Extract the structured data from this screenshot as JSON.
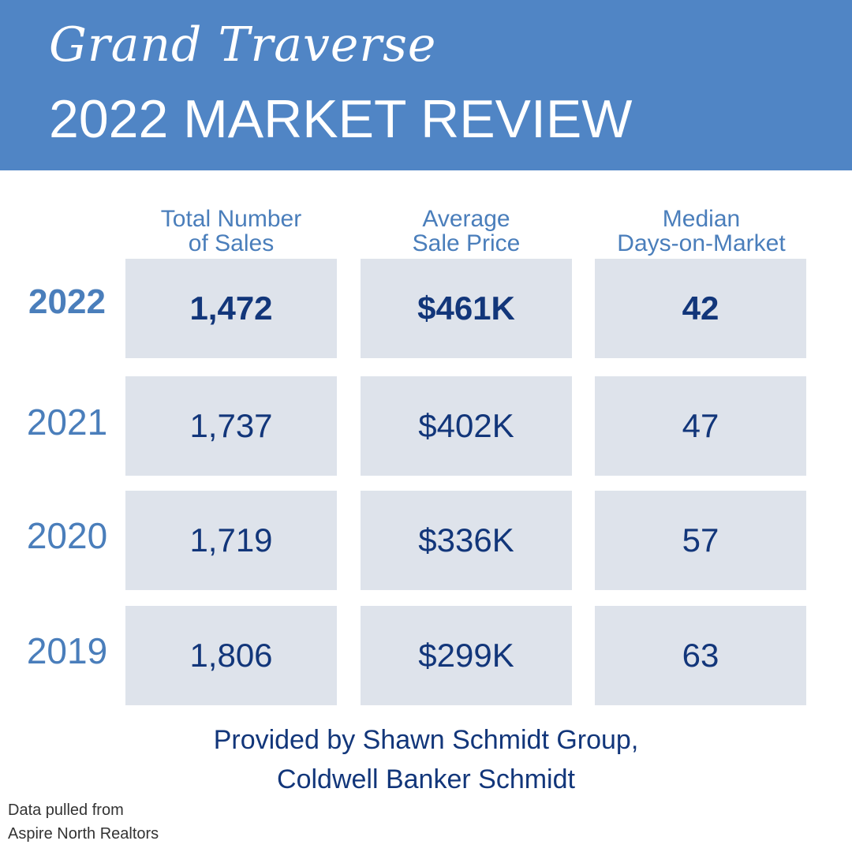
{
  "header": {
    "script_title": "Grand Traverse",
    "title": "2022 MARKET REVIEW"
  },
  "table": {
    "columns": [
      {
        "line1": "Total Number",
        "line2": "of Sales"
      },
      {
        "line1": "Average",
        "line2": "Sale Price"
      },
      {
        "line1": "Median",
        "line2": "Days-on-Market"
      }
    ],
    "rows": [
      {
        "year": "2022",
        "sales": "1,472",
        "price": "$461K",
        "dom": "42"
      },
      {
        "year": "2021",
        "sales": "1,737",
        "price": "$402K",
        "dom": "47"
      },
      {
        "year": "2020",
        "sales": "1,719",
        "price": "$336K",
        "dom": "57"
      },
      {
        "year": "2019",
        "sales": "1,806",
        "price": "$299K",
        "dom": "63"
      }
    ]
  },
  "footer": {
    "line1": "Provided by Shawn Schmidt Group,",
    "line2": "Coldwell Banker Schmidt"
  },
  "source": {
    "line1": "Data pulled from",
    "line2": "Aspire North Realtors"
  },
  "colors": {
    "header_bg": "#5085c5",
    "accent": "#4a7ebb",
    "cell_bg": "#dee3eb",
    "value_text": "#12367a"
  }
}
